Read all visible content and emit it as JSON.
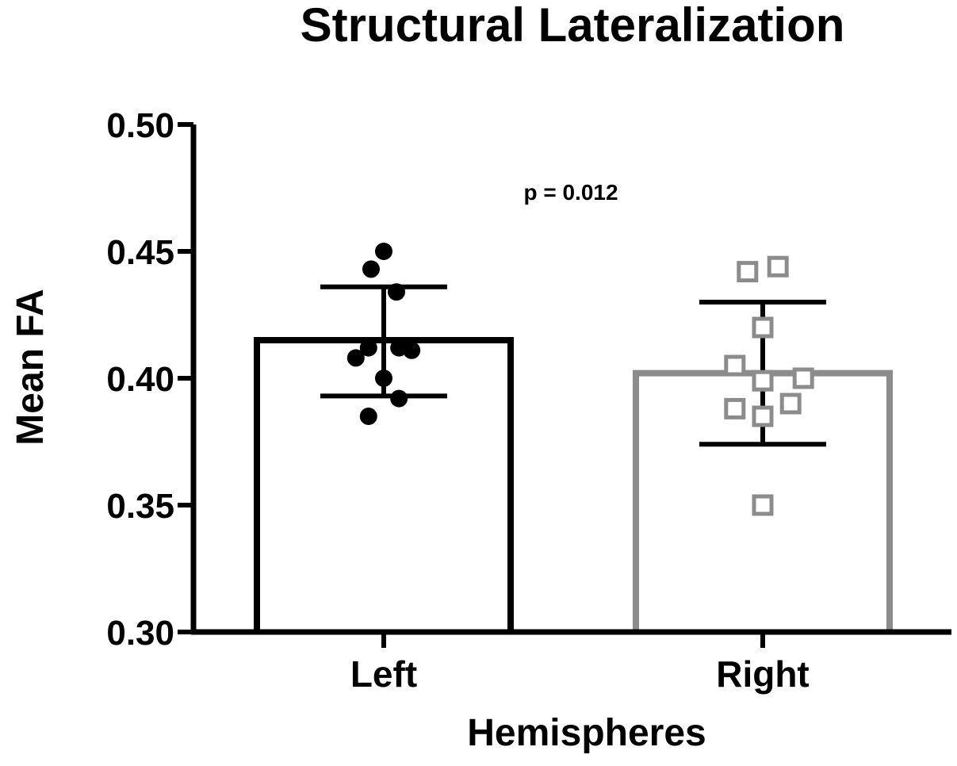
{
  "chart_data": {
    "type": "bar",
    "title": "Structural Lateralization",
    "xlabel": "Hemispheres",
    "ylabel": "Mean FA",
    "ylim": [
      0.3,
      0.5
    ],
    "yticks": [
      0.3,
      0.35,
      0.4,
      0.45,
      0.5
    ],
    "ytick_labels": [
      "0.30",
      "0.35",
      "0.40",
      "0.45",
      "0.50"
    ],
    "grid": false,
    "categories": [
      "Left",
      "Right"
    ],
    "values": [
      0.415,
      0.402
    ],
    "error_low": [
      0.393,
      0.374
    ],
    "error_high": [
      0.436,
      0.43
    ],
    "bar_colors": [
      "#000000",
      "#8c8c8c"
    ],
    "errorbar_color": "#000000",
    "points": [
      {
        "category": "Left",
        "marker": "filled-circle",
        "color": "#000000",
        "offsets": [
          0.0,
          -0.05,
          0.05,
          -0.06,
          0.06,
          -0.11,
          0.11,
          0.0,
          0.06,
          -0.06
        ],
        "values": [
          0.45,
          0.443,
          0.434,
          0.412,
          0.412,
          0.408,
          0.411,
          0.4,
          0.392,
          0.385
        ]
      },
      {
        "category": "Right",
        "marker": "open-square",
        "color": "#8c8c8c",
        "offsets": [
          -0.06,
          0.06,
          0.0,
          -0.11,
          0.0,
          0.16,
          -0.11,
          0.0,
          0.11,
          0.0
        ],
        "values": [
          0.442,
          0.444,
          0.42,
          0.405,
          0.399,
          0.4,
          0.388,
          0.385,
          0.39,
          0.35
        ]
      }
    ],
    "annotation": "p = 0.012"
  }
}
